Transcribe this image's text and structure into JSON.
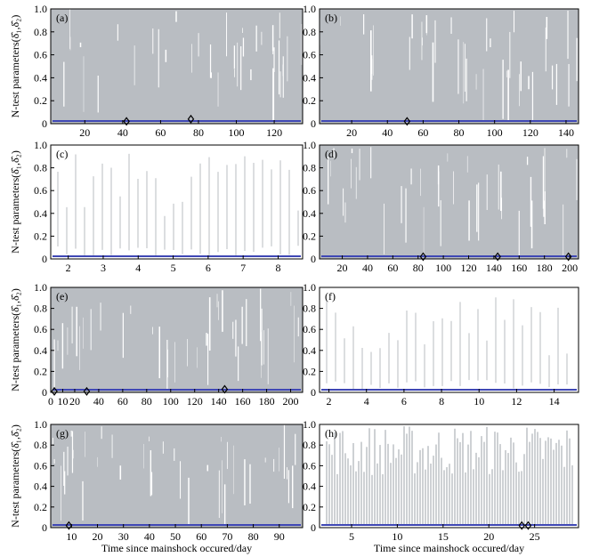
{
  "figure": {
    "ylabel": "N-test parameters(δ̂₁,δ̂₂)",
    "xlabel": "Time since mainshock occured/day",
    "colors": {
      "band": "#b9bdc2",
      "marker": "#3f47b5",
      "axis": "#000000",
      "background": "#ffffff"
    }
  },
  "chart_data": [
    {
      "panel": "(a)",
      "type": "area",
      "ylim": [
        0,
        1.0
      ],
      "xlim": [
        2,
        135
      ],
      "x_ticks": [
        20,
        40,
        60,
        80,
        100,
        120
      ],
      "y_ticks": [
        0,
        0.2,
        0.4,
        0.6,
        0.8,
        1.0
      ],
      "series": [
        {
          "values_lower": 0.0,
          "values_upper": 1.0
        }
      ],
      "markers": [
        {
          "x": 42,
          "y": 0.02
        },
        {
          "x": 76,
          "y": 0.04
        }
      ],
      "density": "dense"
    },
    {
      "panel": "(b)",
      "type": "area",
      "ylim": [
        0,
        1.0
      ],
      "xlim": [
        2,
        147
      ],
      "x_ticks": [
        20,
        40,
        60,
        80,
        100,
        120,
        140
      ],
      "y_ticks": [
        0,
        0.2,
        0.4,
        0.6,
        0.8,
        1.0
      ],
      "markers": [
        {
          "x": 51,
          "y": 0.02
        }
      ],
      "density": "dense"
    },
    {
      "panel": "(c)",
      "type": "area",
      "ylim": [
        0,
        1.0
      ],
      "xlim": [
        1.5,
        8.7
      ],
      "x_ticks": [
        2,
        3,
        4,
        5,
        6,
        7,
        8
      ],
      "y_ticks": [
        0,
        0.2,
        0.4,
        0.6,
        0.8,
        1.0
      ],
      "markers": [],
      "density": "sparse"
    },
    {
      "panel": "(d)",
      "type": "area",
      "ylim": [
        0,
        1.0
      ],
      "xlim": [
        2,
        207
      ],
      "x_ticks": [
        20,
        40,
        60,
        80,
        100,
        120,
        140,
        160,
        180,
        200
      ],
      "y_ticks": [
        0,
        0.2,
        0.4,
        0.6,
        0.8,
        1.0
      ],
      "markers": [
        {
          "x": 84,
          "y": 0.02
        },
        {
          "x": 143,
          "y": 0.02
        },
        {
          "x": 199,
          "y": 0.02
        }
      ],
      "density": "dense"
    },
    {
      "panel": "(e)",
      "type": "area",
      "ylim": [
        0,
        1.0
      ],
      "xlim": [
        0,
        210
      ],
      "x_ticks": [
        0,
        10,
        20,
        40,
        60,
        80,
        100,
        120,
        140,
        160,
        180,
        200
      ],
      "y_ticks": [
        0,
        0.2,
        0.4,
        0.6,
        0.8,
        1.0
      ],
      "markers": [
        {
          "x": 3,
          "y": 0.01
        },
        {
          "x": 30,
          "y": 0.01
        },
        {
          "x": 145,
          "y": 0.03
        }
      ],
      "density": "dense"
    },
    {
      "panel": "(f)",
      "type": "area",
      "ylim": [
        0,
        1.0
      ],
      "xlim": [
        1.5,
        15.3
      ],
      "x_ticks": [
        2,
        4,
        6,
        8,
        10,
        12,
        14
      ],
      "y_ticks": [
        0,
        0.2,
        0.4,
        0.6,
        0.8,
        1.0
      ],
      "markers": [],
      "density": "sparse"
    },
    {
      "panel": "(g)",
      "type": "area",
      "ylim": [
        0,
        1.0
      ],
      "xlim": [
        2,
        99
      ],
      "x_ticks": [
        10,
        20,
        30,
        40,
        50,
        60,
        70,
        80,
        90
      ],
      "y_ticks": [
        0,
        0.2,
        0.4,
        0.6,
        0.8,
        1.0
      ],
      "markers": [
        {
          "x": 9,
          "y": 0.02
        }
      ],
      "density": "dense"
    },
    {
      "panel": "(h)",
      "type": "area",
      "ylim": [
        0,
        1.0
      ],
      "xlim": [
        1.5,
        29.8
      ],
      "x_ticks": [
        5,
        10,
        15,
        20,
        25
      ],
      "y_ticks": [
        0,
        0.2,
        0.4,
        0.6,
        0.8,
        1.0
      ],
      "markers": [
        {
          "x": 23.6,
          "y": 0.02
        },
        {
          "x": 24.3,
          "y": 0.02
        }
      ],
      "density": "medium"
    }
  ]
}
